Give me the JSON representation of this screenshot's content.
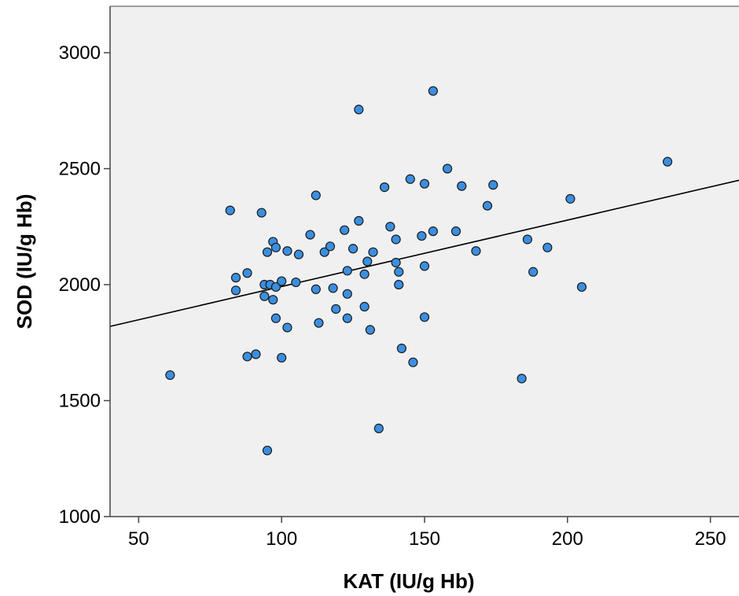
{
  "chart_data": {
    "type": "scatter",
    "title": "",
    "xlabel": "KAT (IU/g Hb)",
    "ylabel": "SOD (IU/g Hb)",
    "xlim": [
      40,
      260
    ],
    "ylim": [
      1000,
      3200
    ],
    "xticks": [
      50,
      100,
      150,
      200,
      250
    ],
    "yticks": [
      1000,
      1500,
      2000,
      2500,
      3000
    ],
    "grid": false,
    "legend": "none",
    "colors": {
      "plot_background": "#f0f0f0",
      "point_fill": "#3b8fe0",
      "point_stroke": "#1a1a1a",
      "fit_line": "#000000"
    },
    "fit_line": {
      "x": [
        40,
        260
      ],
      "y": [
        1820,
        2450
      ]
    },
    "points": [
      {
        "x": 61,
        "y": 1610
      },
      {
        "x": 82,
        "y": 2320
      },
      {
        "x": 84,
        "y": 2030
      },
      {
        "x": 84,
        "y": 1975
      },
      {
        "x": 88,
        "y": 2050
      },
      {
        "x": 88,
        "y": 1690
      },
      {
        "x": 91,
        "y": 1700
      },
      {
        "x": 93,
        "y": 2310
      },
      {
        "x": 94,
        "y": 2000
      },
      {
        "x": 94,
        "y": 1950
      },
      {
        "x": 95,
        "y": 2140
      },
      {
        "x": 95,
        "y": 1285
      },
      {
        "x": 96,
        "y": 2000
      },
      {
        "x": 97,
        "y": 2185
      },
      {
        "x": 97,
        "y": 1935
      },
      {
        "x": 98,
        "y": 2160
      },
      {
        "x": 98,
        "y": 1990
      },
      {
        "x": 98,
        "y": 1855
      },
      {
        "x": 100,
        "y": 2015
      },
      {
        "x": 100,
        "y": 1685
      },
      {
        "x": 102,
        "y": 2145
      },
      {
        "x": 102,
        "y": 1815
      },
      {
        "x": 105,
        "y": 2010
      },
      {
        "x": 106,
        "y": 2130
      },
      {
        "x": 110,
        "y": 2215
      },
      {
        "x": 112,
        "y": 2385
      },
      {
        "x": 112,
        "y": 1980
      },
      {
        "x": 113,
        "y": 1835
      },
      {
        "x": 115,
        "y": 2140
      },
      {
        "x": 117,
        "y": 2165
      },
      {
        "x": 118,
        "y": 1985
      },
      {
        "x": 119,
        "y": 1895
      },
      {
        "x": 122,
        "y": 2235
      },
      {
        "x": 123,
        "y": 2060
      },
      {
        "x": 123,
        "y": 1960
      },
      {
        "x": 123,
        "y": 1855
      },
      {
        "x": 125,
        "y": 2155
      },
      {
        "x": 127,
        "y": 2755
      },
      {
        "x": 127,
        "y": 2275
      },
      {
        "x": 129,
        "y": 2045
      },
      {
        "x": 129,
        "y": 1905
      },
      {
        "x": 130,
        "y": 2100
      },
      {
        "x": 131,
        "y": 1805
      },
      {
        "x": 132,
        "y": 2140
      },
      {
        "x": 134,
        "y": 1380
      },
      {
        "x": 136,
        "y": 2420
      },
      {
        "x": 138,
        "y": 2250
      },
      {
        "x": 140,
        "y": 2195
      },
      {
        "x": 140,
        "y": 2095
      },
      {
        "x": 141,
        "y": 2055
      },
      {
        "x": 141,
        "y": 2000
      },
      {
        "x": 142,
        "y": 1725
      },
      {
        "x": 145,
        "y": 2455
      },
      {
        "x": 146,
        "y": 1665
      },
      {
        "x": 149,
        "y": 2210
      },
      {
        "x": 150,
        "y": 2435
      },
      {
        "x": 150,
        "y": 2080
      },
      {
        "x": 150,
        "y": 1860
      },
      {
        "x": 153,
        "y": 2835
      },
      {
        "x": 153,
        "y": 2230
      },
      {
        "x": 158,
        "y": 2500
      },
      {
        "x": 161,
        "y": 2230
      },
      {
        "x": 163,
        "y": 2425
      },
      {
        "x": 168,
        "y": 2145
      },
      {
        "x": 172,
        "y": 2340
      },
      {
        "x": 174,
        "y": 2430
      },
      {
        "x": 184,
        "y": 1595
      },
      {
        "x": 186,
        "y": 2195
      },
      {
        "x": 188,
        "y": 2055
      },
      {
        "x": 193,
        "y": 2160
      },
      {
        "x": 201,
        "y": 2370
      },
      {
        "x": 205,
        "y": 1990
      },
      {
        "x": 235,
        "y": 2530
      }
    ]
  }
}
